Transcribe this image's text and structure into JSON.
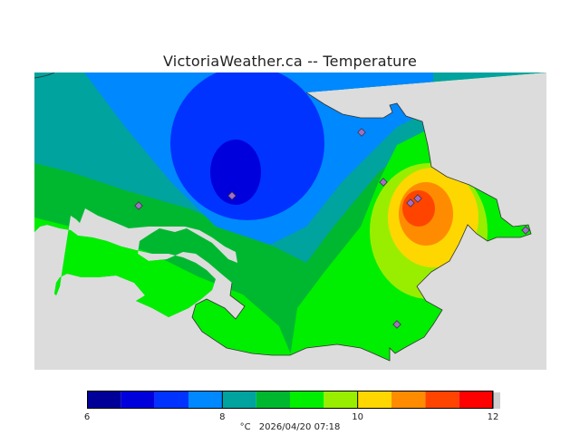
{
  "header": {
    "title": "VictoriaWeather.ca -- Temperature"
  },
  "legend": {
    "unit": "°C",
    "timestamp": "2026/04/20 07:18",
    "tick_labels": [
      "6",
      "8",
      "10",
      "12"
    ],
    "range": [
      6,
      12
    ],
    "colors": [
      "#000099",
      "#0000dd",
      "#0033ff",
      "#0088ff",
      "#00a39e",
      "#00b830",
      "#00ee00",
      "#99ee00",
      "#ffd700",
      "#ff8c00",
      "#ff4400",
      "#ff0000"
    ]
  },
  "map": {
    "ocean_color": "#dcdcdc",
    "station_count": 8,
    "temperature_range_c": [
      6,
      12
    ]
  }
}
